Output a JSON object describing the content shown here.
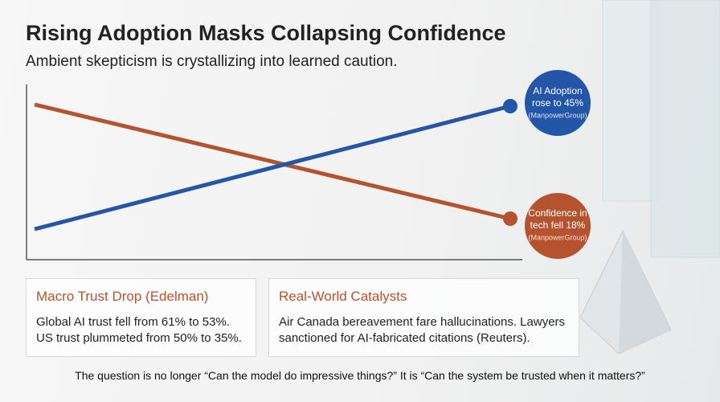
{
  "header": {
    "title": "Rising Adoption Masks Collapsing Confidence",
    "subtitle": "Ambient skepticism is crystallizing into learned caution."
  },
  "annotations": [
    {
      "lines": [
        "AI Adoption",
        "rose to 45%"
      ],
      "source": "(ManpowerGroup)"
    },
    {
      "lines": [
        "Confidence in",
        "tech fell 18%"
      ],
      "source": "(ManpowerGroup)"
    }
  ],
  "cards": [
    {
      "title": "Macro Trust Drop (Edelman)",
      "lines": [
        "Global AI trust fell from 61% to 53%.",
        "US trust plummeted from 50% to 35%."
      ]
    },
    {
      "title": "Real-World Catalysts",
      "lines": [
        "Air Canada bereavement fare hallucinations. Lawyers",
        "sanctioned for AI-fabricated citations (Reuters)."
      ]
    }
  ],
  "footer": "The question is no longer “Can the model do impressive things?” It is “Can the system be trusted when it matters?”"
}
